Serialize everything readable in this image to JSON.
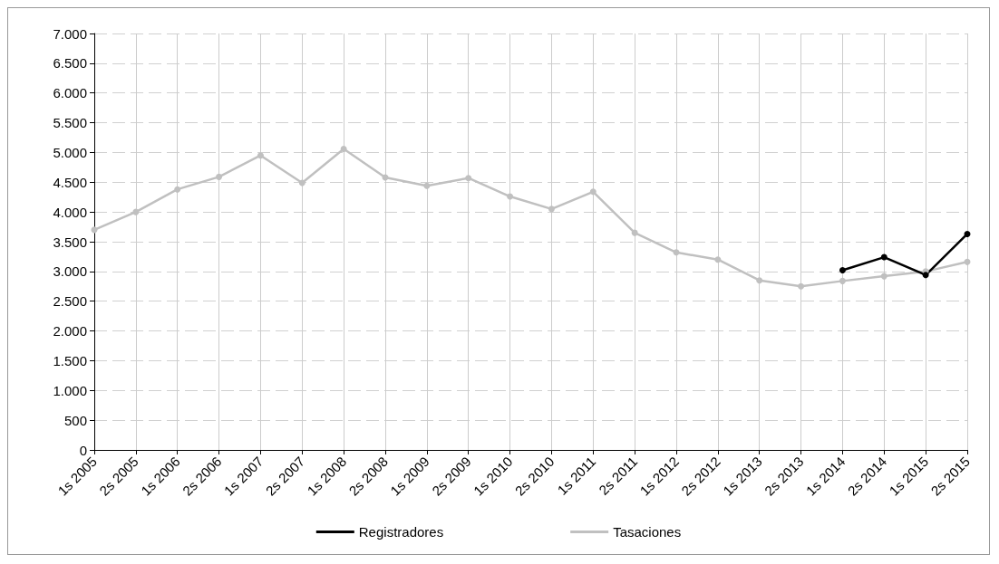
{
  "chart_data": {
    "type": "line",
    "categories": [
      "1s 2005",
      "2s 2005",
      "1s 2006",
      "2s 2006",
      "1s 2007",
      "2s 2007",
      "1s 2008",
      "2s 2008",
      "1s 2009",
      "2s 2009",
      "1s 2010",
      "2s 2010",
      "1s 2011",
      "2s 2011",
      "1s 2012",
      "2s 2012",
      "1s 2013",
      "2s 2013",
      "1s 2014",
      "2s 2014",
      "1s 2015",
      "2s 2015"
    ],
    "series": [
      {
        "name": "Registradores",
        "color": "#000000",
        "values": [
          null,
          null,
          null,
          null,
          null,
          null,
          null,
          null,
          null,
          null,
          null,
          null,
          null,
          null,
          null,
          null,
          null,
          null,
          3020,
          3240,
          2940,
          3630
        ]
      },
      {
        "name": "Tasaciones",
        "color": "#c0c0c0",
        "values": [
          3700,
          4000,
          4380,
          4590,
          4950,
          4490,
          5060,
          4580,
          4440,
          4570,
          4260,
          4050,
          4340,
          3650,
          3320,
          3200,
          2850,
          2750,
          2840,
          2920,
          3000,
          3160
        ]
      }
    ],
    "ylim": [
      0,
      7000
    ],
    "yticks": [
      0,
      500,
      {
        "value": 1000,
        "label": "1.000"
      },
      {
        "value": 1500,
        "label": "1.500"
      },
      {
        "value": 2000,
        "label": "2.000"
      },
      {
        "value": 2500,
        "label": "2.500"
      },
      {
        "value": 3000,
        "label": "3.000"
      },
      {
        "value": 3500,
        "label": "3.500"
      },
      {
        "value": 4000,
        "label": "4.000"
      },
      {
        "value": 4500,
        "label": "4.500"
      },
      {
        "value": 5000,
        "label": "5.000"
      },
      {
        "value": 5500,
        "label": "5.500"
      },
      {
        "value": 6000,
        "label": "6.000"
      },
      {
        "value": 6500,
        "label": "6.500"
      },
      {
        "value": 7000,
        "label": "7.000"
      }
    ],
    "grid": true,
    "legend": "bottom",
    "marker": "circle",
    "line_style": "solid"
  }
}
